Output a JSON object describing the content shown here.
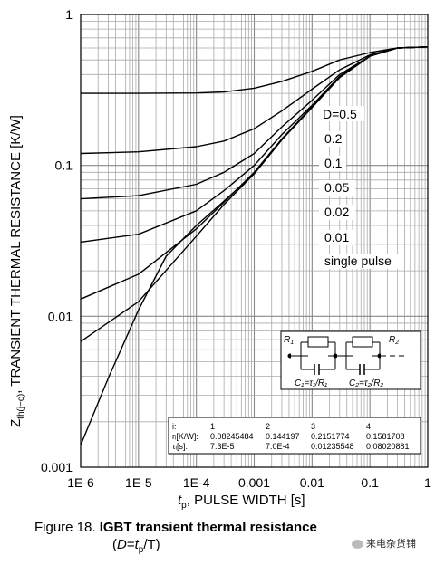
{
  "chart_data": {
    "type": "line",
    "xscale": "log",
    "yscale": "log",
    "xlim": [
      1e-06,
      1
    ],
    "ylim": [
      0.001,
      1
    ],
    "grid": true,
    "xlabel_t": "t",
    "xlabel_sub": "p",
    "xlabel_rest": ", PULSE WIDTH [s]",
    "ylabel_z": "Z",
    "ylabel_sub": "th(j−c)",
    "ylabel_rest": ", TRANSIENT THERMAL RESISTANCE [K/W]",
    "x_tick_labels": [
      "1E-6",
      "1E-5",
      "1E-4",
      "0.001",
      "0.01",
      "0.1",
      "1"
    ],
    "y_tick_labels": [
      "0.001",
      "0.01",
      "0.1",
      "1"
    ],
    "series": [
      {
        "name": "D=0.5",
        "x": [
          1e-06,
          1e-05,
          0.0001,
          0.0003,
          0.001,
          0.003,
          0.01,
          0.03,
          0.1,
          0.3,
          1
        ],
        "y": [
          0.3,
          0.3,
          0.302,
          0.307,
          0.325,
          0.36,
          0.42,
          0.5,
          0.56,
          0.6,
          0.61
        ]
      },
      {
        "name": "0.2",
        "x": [
          1e-06,
          1e-05,
          0.0001,
          0.0003,
          0.001,
          0.003,
          0.01,
          0.03,
          0.1,
          0.3,
          1
        ],
        "y": [
          0.12,
          0.123,
          0.133,
          0.145,
          0.175,
          0.23,
          0.32,
          0.43,
          0.54,
          0.6,
          0.61
        ]
      },
      {
        "name": "0.1",
        "x": [
          1e-06,
          1e-05,
          0.0001,
          0.0003,
          0.001,
          0.003,
          0.01,
          0.03,
          0.1,
          0.3,
          1
        ],
        "y": [
          0.06,
          0.063,
          0.075,
          0.09,
          0.12,
          0.18,
          0.27,
          0.4,
          0.53,
          0.6,
          0.61
        ]
      },
      {
        "name": "0.05",
        "x": [
          1e-06,
          1e-05,
          0.0001,
          0.0003,
          0.001,
          0.003,
          0.01,
          0.03,
          0.1,
          0.3,
          1
        ],
        "y": [
          0.031,
          0.035,
          0.05,
          0.068,
          0.1,
          0.16,
          0.25,
          0.39,
          0.53,
          0.6,
          0.61
        ]
      },
      {
        "name": "0.02",
        "x": [
          1e-06,
          1e-05,
          0.0001,
          0.0003,
          0.001,
          0.003,
          0.01,
          0.03,
          0.1,
          0.3,
          1
        ],
        "y": [
          0.013,
          0.019,
          0.038,
          0.057,
          0.09,
          0.15,
          0.245,
          0.385,
          0.53,
          0.6,
          0.61
        ]
      },
      {
        "name": "0.01",
        "x": [
          1e-06,
          1e-05,
          0.0001,
          0.0003,
          0.001,
          0.003,
          0.01,
          0.03,
          0.1,
          0.3,
          1
        ],
        "y": [
          0.0068,
          0.0125,
          0.034,
          0.055,
          0.088,
          0.148,
          0.242,
          0.383,
          0.53,
          0.6,
          0.61
        ]
      },
      {
        "name": "single pulse",
        "x": [
          1e-06,
          3e-06,
          1e-05,
          3e-05,
          0.0001,
          0.0003,
          0.001,
          0.003,
          0.01,
          0.03,
          0.1,
          0.3,
          1
        ],
        "y": [
          0.0014,
          0.0039,
          0.011,
          0.025,
          0.04,
          0.058,
          0.088,
          0.148,
          0.242,
          0.382,
          0.53,
          0.6,
          0.61
        ]
      }
    ]
  },
  "labels": {
    "d05": "D=0.5",
    "d02": "0.2",
    "d01": "0.1",
    "d005": "0.05",
    "d002": "0.02",
    "d001": "0.01",
    "single": "single pulse"
  },
  "rc_network": {
    "r1": "R",
    "r1_sub": "1",
    "r2": "R",
    "r2_sub": "2",
    "c1": "C₁=τ₁/R₁",
    "c2": "C₂=τ₂/R₂"
  },
  "param_table": {
    "row_i": [
      "i:",
      "1",
      "2",
      "3",
      "4"
    ],
    "row_r": [
      "rᵢ[K/W]:",
      "0.08245484",
      "0.144197",
      "0.2151774",
      "0.1581708"
    ],
    "row_t": [
      "τᵢ[s]:",
      "7.3E-5",
      "7.0E-4",
      "0.01235548",
      "0.08020881"
    ]
  },
  "caption": {
    "prefix": "Figure 18. ",
    "bold": "IGBT transient thermal resistance",
    "d": "D",
    "eq": "=",
    "t": "t",
    "p": "p",
    "rest": "/T)",
    "open": "("
  },
  "watermark": "来电杂货铺"
}
